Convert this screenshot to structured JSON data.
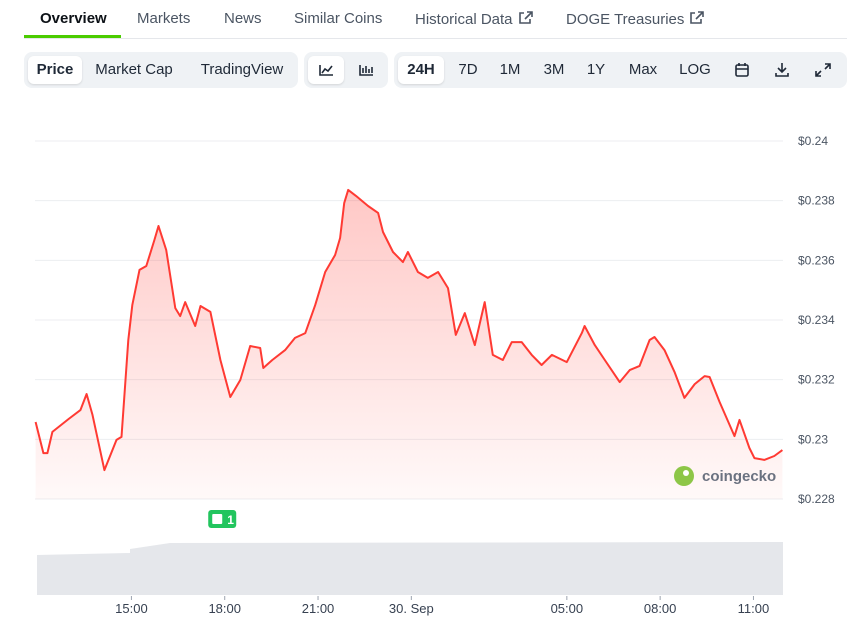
{
  "tabs": [
    "Overview",
    "Markets",
    "News",
    "Similar Coins",
    "Historical Data",
    "DOGE Treasuries"
  ],
  "toolbar": {
    "chart_views": [
      "Price",
      "Market Cap",
      "TradingView"
    ],
    "ranges": [
      "24H",
      "7D",
      "1M",
      "3M",
      "1Y",
      "Max",
      "LOG"
    ]
  },
  "watermark": "coingecko",
  "chart_data": {
    "type": "line",
    "x": [
      11.92,
      12.17,
      12.3,
      12.46,
      12.98,
      13.36,
      13.56,
      13.75,
      14.13,
      14.52,
      14.68,
      14.9,
      15.03,
      15.26,
      15.48,
      15.74,
      15.87,
      16.12,
      16.41,
      16.57,
      16.73,
      17.05,
      17.22,
      17.54,
      17.86,
      18.18,
      18.5,
      18.82,
      19.14,
      19.24,
      19.53,
      19.94,
      20.26,
      20.59,
      20.91,
      21.23,
      21.55,
      21.71,
      21.84,
      21.97,
      22.22,
      22.61,
      22.93,
      23.09,
      23.41,
      23.73,
      23.89,
      24.21,
      24.53,
      24.86,
      25.18,
      25.43,
      25.72,
      26.04,
      26.36,
      26.62,
      26.94,
      27.23,
      27.55,
      27.87,
      28.19,
      28.52,
      29.0,
      29.48,
      29.57,
      29.9,
      30.22,
      30.7,
      31.02,
      31.34,
      31.66,
      31.82,
      32.14,
      32.46,
      32.78,
      33.11,
      33.43,
      33.59,
      33.91,
      34.39,
      34.55,
      34.87,
      35.03,
      35.35,
      35.67,
      35.93
    ],
    "series": [
      {
        "color": "#ff3a33",
        "values": [
          0.23058,
          0.22954,
          0.22954,
          0.23025,
          0.23068,
          0.23098,
          0.23152,
          0.23082,
          0.22897,
          0.22998,
          0.23008,
          0.23333,
          0.2345,
          0.23568,
          0.23581,
          0.23668,
          0.23715,
          0.23635,
          0.2344,
          0.23413,
          0.2346,
          0.2338,
          0.23447,
          0.23427,
          0.23266,
          0.23142,
          0.23199,
          0.23313,
          0.23306,
          0.23239,
          0.23266,
          0.23299,
          0.2334,
          0.23356,
          0.2345,
          0.23561,
          0.23618,
          0.23675,
          0.23792,
          0.23836,
          0.23816,
          0.23782,
          0.23759,
          0.23695,
          0.23628,
          0.23594,
          0.23628,
          0.23561,
          0.23541,
          0.23561,
          0.23507,
          0.2335,
          0.23423,
          0.23316,
          0.2346,
          0.23283,
          0.23266,
          0.23326,
          0.23326,
          0.23283,
          0.23249,
          0.23283,
          0.23259,
          0.23356,
          0.2338,
          0.23316,
          0.23266,
          0.23192,
          0.23232,
          0.23246,
          0.23333,
          0.23343,
          0.23299,
          0.23226,
          0.23139,
          0.23185,
          0.23212,
          0.23209,
          0.23125,
          0.23011,
          0.23065,
          0.22971,
          0.22937,
          0.22931,
          0.22944,
          0.22964
        ]
      }
    ],
    "xlim": [
      11.9,
      35.95
    ],
    "xticks": [
      {
        "value": 15,
        "label": "15:00"
      },
      {
        "value": 18,
        "label": "18:00"
      },
      {
        "value": 21,
        "label": "21:00"
      },
      {
        "value": 24,
        "label": "30. Sep"
      },
      {
        "value": 29,
        "label": "05:00"
      },
      {
        "value": 32,
        "label": "08:00"
      },
      {
        "value": 35,
        "label": "11:00"
      }
    ],
    "ylim": [
      0.228,
      0.24
    ],
    "yticks": [
      {
        "value": 0.228,
        "label": "$0.228"
      },
      {
        "value": 0.23,
        "label": "$0.23"
      },
      {
        "value": 0.232,
        "label": "$0.232"
      },
      {
        "value": 0.234,
        "label": "$0.234"
      },
      {
        "value": 0.236,
        "label": "$0.236"
      },
      {
        "value": 0.238,
        "label": "$0.238"
      },
      {
        "value": 0.24,
        "label": "$0.24"
      }
    ],
    "grid": true,
    "annotations": [
      {
        "x": 17.92,
        "text": "1"
      }
    ]
  }
}
